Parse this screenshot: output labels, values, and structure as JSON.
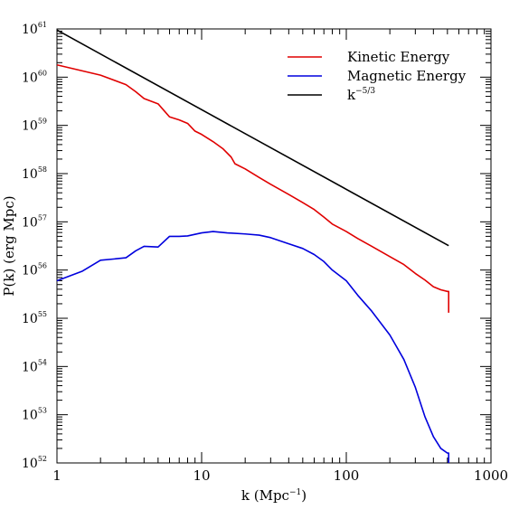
{
  "chart_data": {
    "type": "line",
    "xscale": "log",
    "yscale": "log",
    "xlim": [
      1,
      1000
    ],
    "ylim": [
      1e+52,
      1e+61
    ],
    "xlabel": "k (Mpc",
    "xlabel_sup": "−1",
    "xlabel_close": ")",
    "ylabel": "P(k) (erg Mpc)",
    "xticks": [
      {
        "value": 1,
        "label": "1"
      },
      {
        "value": 10,
        "label": "10"
      },
      {
        "value": 100,
        "label": "100"
      },
      {
        "value": 1000,
        "label": "1000"
      }
    ],
    "yticks": [
      {
        "exp": 52,
        "base": "10",
        "sup": "52"
      },
      {
        "exp": 53,
        "base": "10",
        "sup": "53"
      },
      {
        "exp": 54,
        "base": "10",
        "sup": "54"
      },
      {
        "exp": 55,
        "base": "10",
        "sup": "55"
      },
      {
        "exp": 56,
        "base": "10",
        "sup": "56"
      },
      {
        "exp": 57,
        "base": "10",
        "sup": "57"
      },
      {
        "exp": 58,
        "base": "10",
        "sup": "58"
      },
      {
        "exp": 59,
        "base": "10",
        "sup": "59"
      },
      {
        "exp": 60,
        "base": "10",
        "sup": "60"
      },
      {
        "exp": 61,
        "base": "10",
        "sup": "61"
      }
    ],
    "legend_position": "top-right",
    "series": [
      {
        "name": "Kinetic Energy",
        "color": "#e00000",
        "points": [
          [
            1,
            1.8e+60
          ],
          [
            2,
            1.1e+60
          ],
          [
            3,
            7e+59
          ],
          [
            3.5,
            5e+59
          ],
          [
            4,
            3.6e+59
          ],
          [
            5,
            2.8e+59
          ],
          [
            6,
            1.5e+59
          ],
          [
            7,
            1.3e+59
          ],
          [
            8,
            1.1e+59
          ],
          [
            9,
            7.6e+58
          ],
          [
            10,
            6.5e+58
          ],
          [
            12,
            4.6e+58
          ],
          [
            14,
            3.3e+58
          ],
          [
            16,
            2.2e+58
          ],
          [
            17,
            1.6e+58
          ],
          [
            20,
            1.25e+58
          ],
          [
            25,
            8.3e+57
          ],
          [
            30,
            6e+57
          ],
          [
            40,
            3.7e+57
          ],
          [
            50,
            2.5e+57
          ],
          [
            60,
            1.8e+57
          ],
          [
            70,
            1.25e+57
          ],
          [
            80,
            9e+56
          ],
          [
            100,
            6.3e+56
          ],
          [
            120,
            4.5e+56
          ],
          [
            150,
            3.1e+56
          ],
          [
            200,
            1.9e+56
          ],
          [
            250,
            1.3e+56
          ],
          [
            300,
            8.5e+55
          ],
          [
            350,
            6.2e+55
          ],
          [
            400,
            4.5e+55
          ],
          [
            450,
            3.9e+55
          ],
          [
            500,
            3.6e+55
          ],
          [
            510,
            3.6e+55
          ],
          [
            510,
            1.3e+55
          ]
        ]
      },
      {
        "name": "Magnetic Energy",
        "color": "#0000dd",
        "points": [
          [
            1,
            6e+55
          ],
          [
            1.5,
            9.5e+55
          ],
          [
            2,
            1.6e+56
          ],
          [
            2.5,
            1.7e+56
          ],
          [
            3,
            1.8e+56
          ],
          [
            3.5,
            2.5e+56
          ],
          [
            4,
            3.1e+56
          ],
          [
            5,
            3e+56
          ],
          [
            6,
            5e+56
          ],
          [
            7,
            5e+56
          ],
          [
            8,
            5.1e+56
          ],
          [
            10,
            5.9e+56
          ],
          [
            12,
            6.3e+56
          ],
          [
            15,
            5.9e+56
          ],
          [
            20,
            5.6e+56
          ],
          [
            25,
            5.3e+56
          ],
          [
            30,
            4.7e+56
          ],
          [
            40,
            3.5e+56
          ],
          [
            50,
            2.8e+56
          ],
          [
            60,
            2.1e+56
          ],
          [
            70,
            1.5e+56
          ],
          [
            80,
            1e+56
          ],
          [
            100,
            6e+55
          ],
          [
            120,
            3e+55
          ],
          [
            150,
            1.4e+55
          ],
          [
            200,
            4.5e+54
          ],
          [
            250,
            1.4e+54
          ],
          [
            300,
            3.7e+53
          ],
          [
            350,
            9e+52
          ],
          [
            400,
            3.5e+52
          ],
          [
            450,
            2e+52
          ],
          [
            500,
            1.6e+52
          ],
          [
            510,
            1.6e+52
          ],
          [
            510,
            1e+52
          ]
        ]
      },
      {
        "name": "k^-5/3",
        "legend_base": "k",
        "legend_sup": "−5/3",
        "color": "#000000",
        "points": [
          [
            1,
            9.5e+60
          ],
          [
            510,
            3.2e+56
          ]
        ]
      }
    ]
  }
}
